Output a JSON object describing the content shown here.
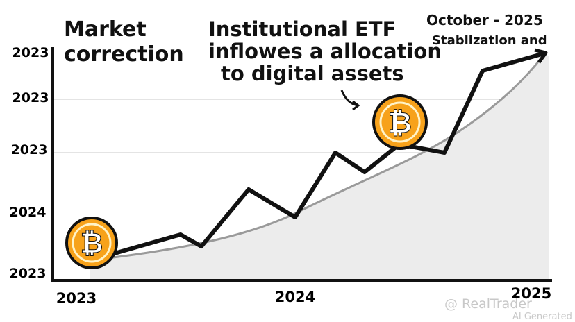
{
  "annotations": {
    "left": [
      "Market",
      "correction"
    ],
    "middle": [
      "Institutional ETF",
      "inflowes a allocation",
      "to digital assets"
    ],
    "right": [
      "October - 2025",
      "Stablization and"
    ]
  },
  "y_axis_labels": [
    "2023",
    "2023",
    "2023",
    "2024",
    "2023"
  ],
  "x_axis_labels": [
    "2023",
    "2024",
    "2025"
  ],
  "watermark": [
    "@ RealTrader",
    "AI Generated"
  ]
}
